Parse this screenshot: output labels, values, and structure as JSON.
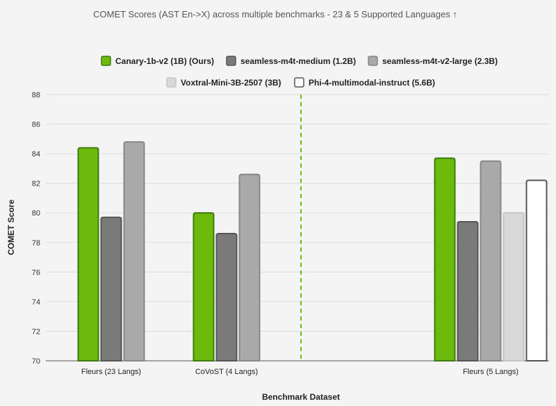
{
  "chart_data": {
    "type": "bar",
    "title": "COMET Scores (AST En->X) across multiple benchmarks - 23 & 5 Supported Languages ↑",
    "xlabel": "Benchmark Dataset",
    "ylabel": "COMET Score",
    "ylim": [
      70,
      88
    ],
    "yticks": [
      70,
      72,
      74,
      76,
      78,
      80,
      82,
      84,
      86,
      88
    ],
    "grid": true,
    "legend_position": "top",
    "categories": [
      "Fleurs (23 Langs)",
      "CoVoST (4 Langs)",
      "Fleurs (5 Langs)"
    ],
    "series": [
      {
        "name": "Canary-1b-v2 (1B) (Ours)",
        "color": "#6cbb0c",
        "edge": "#3d7a10",
        "values": [
          84.4,
          80.0,
          83.7
        ]
      },
      {
        "name": "seamless-m4t-medium (1.2B)",
        "color": "#7a7a7a",
        "edge": "#555555",
        "values": [
          79.7,
          78.6,
          79.4
        ]
      },
      {
        "name": "seamless-m4t-v2-large (2.3B)",
        "color": "#a9a9a9",
        "edge": "#888888",
        "values": [
          84.8,
          82.6,
          83.5
        ]
      },
      {
        "name": "Voxtral-Mini-3B-2507 (3B)",
        "color": "#d9d9d9",
        "edge": "#c4c4c4",
        "values": [
          null,
          null,
          80.0
        ]
      },
      {
        "name": "Phi-4-multimodal-instruct (5.6B)",
        "color": "#ffffff",
        "edge": "#555555",
        "values": [
          null,
          null,
          82.2
        ]
      }
    ],
    "divider": "between CoVoST (4 Langs) and Fleurs (5 Langs)"
  }
}
